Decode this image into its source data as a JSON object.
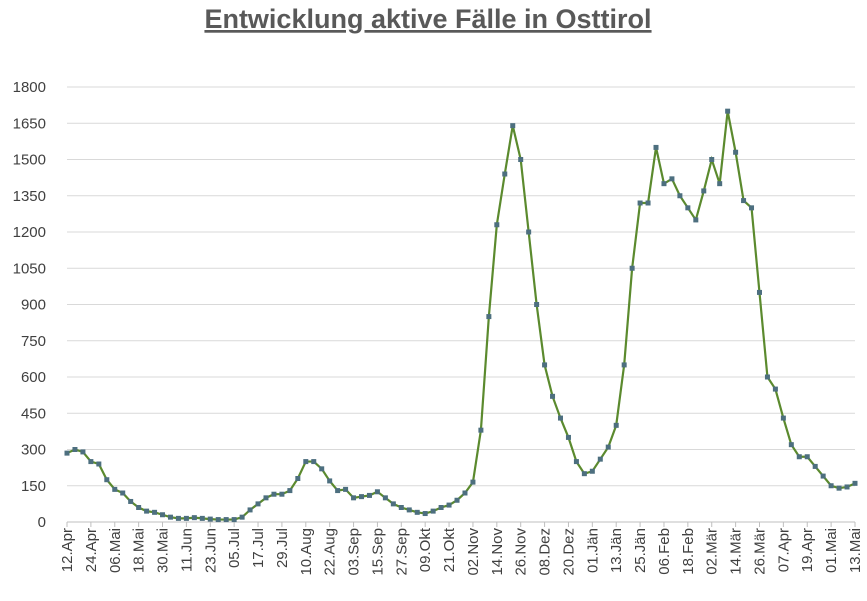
{
  "chart_data": {
    "type": "line",
    "title": "Entwicklung aktive Fälle in Osttirol",
    "categories": [
      "12.Apr",
      null,
      null,
      "24.Apr",
      null,
      null,
      "06.Mai",
      null,
      null,
      "18.Mai",
      null,
      null,
      "30.Mai",
      null,
      null,
      "11.Jun",
      null,
      null,
      "23.Jun",
      null,
      null,
      "05.Jul",
      null,
      null,
      "17.Jul",
      null,
      null,
      "29.Jul",
      null,
      null,
      "10.Aug",
      null,
      null,
      "22.Aug",
      null,
      null,
      "03.Sep",
      null,
      null,
      "15.Sep",
      null,
      null,
      "27.Sep",
      null,
      null,
      "09.Okt",
      null,
      null,
      "21.Okt",
      null,
      null,
      "02.Nov",
      null,
      null,
      "14.Nov",
      null,
      null,
      "26.Nov",
      null,
      null,
      "08.Dez",
      null,
      null,
      "20.Dez",
      null,
      null,
      "01.Jän",
      null,
      null,
      "13.Jän",
      null,
      null,
      "25.Jän",
      null,
      null,
      "06.Feb",
      null,
      null,
      "18.Feb",
      null,
      null,
      "02.Mär",
      null,
      null,
      "14.Mär",
      null,
      null,
      "26.Mär",
      null,
      null,
      "07.Apr",
      null,
      null,
      "19.Apr",
      null,
      null,
      "01.Mai",
      null,
      null,
      "13.Mai"
    ],
    "values": [
      285,
      300,
      290,
      250,
      240,
      175,
      135,
      120,
      85,
      60,
      45,
      40,
      30,
      20,
      15,
      15,
      18,
      15,
      12,
      10,
      10,
      10,
      20,
      50,
      75,
      100,
      115,
      115,
      130,
      180,
      250,
      250,
      220,
      170,
      130,
      135,
      100,
      105,
      110,
      125,
      100,
      75,
      60,
      50,
      40,
      35,
      45,
      60,
      70,
      90,
      120,
      165,
      380,
      850,
      1230,
      1440,
      1640,
      1500,
      1200,
      900,
      650,
      520,
      430,
      350,
      250,
      200,
      210,
      260,
      310,
      400,
      650,
      1050,
      1320,
      1320,
      1550,
      1400,
      1420,
      1350,
      1300,
      1250,
      1370,
      1500,
      1400,
      1700,
      1530,
      1330,
      1300,
      950,
      600,
      550,
      430,
      320,
      270,
      270,
      230,
      190,
      150,
      140,
      145,
      160
    ],
    "color": "#5b8a2e",
    "marker_color": "#4d6f7f",
    "ylim": [
      0,
      1800
    ],
    "yticks": [
      0,
      150,
      300,
      450,
      600,
      750,
      900,
      1050,
      1200,
      1350,
      1500,
      1650,
      1800
    ],
    "grid": true
  }
}
